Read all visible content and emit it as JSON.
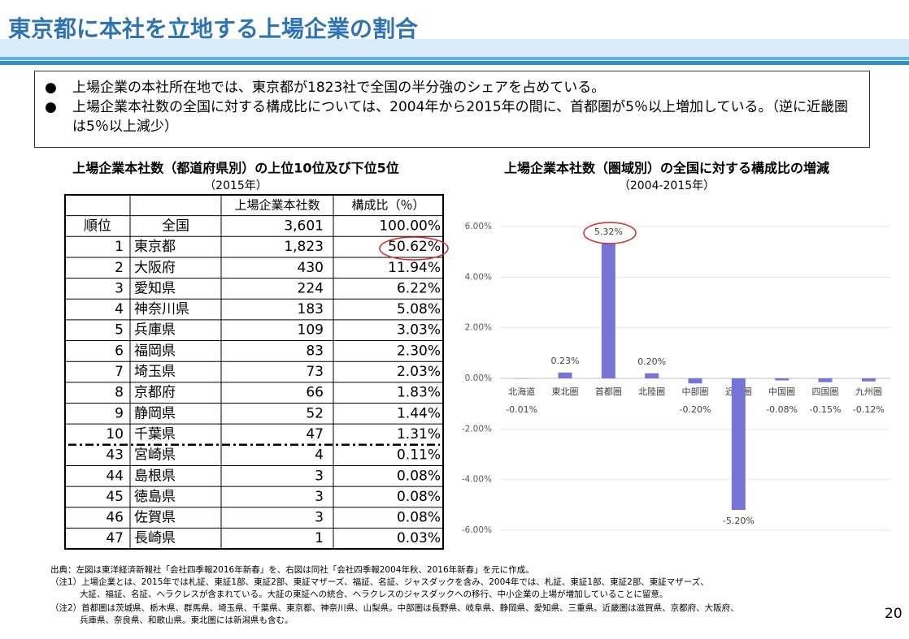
{
  "header": {
    "title": "東京都に本社を立地する上場企業の割合"
  },
  "bullets": [
    "上場企業の本社所在地では、東京都が1823社で全国の半分強のシェアを占めている。",
    "上場企業本社数の全国に対する構成比については、2004年から2015年の間に、首都圏が5％以上増加している。（逆に近畿圏は5％以上減少）"
  ],
  "table": {
    "title": "上場企業本社数（都道府県別）の上位10位及び下位5位",
    "subtitle": "（2015年）",
    "header": [
      "上場企業本社数",
      "構成比（％）"
    ],
    "total": [
      "順位",
      "全国",
      "3,601",
      "100.00%"
    ],
    "rows": [
      [
        "1",
        "東京都",
        "1,823",
        "50.62%"
      ],
      [
        "2",
        "大阪府",
        "430",
        "11.94%"
      ],
      [
        "3",
        "愛知県",
        "224",
        "6.22%"
      ],
      [
        "4",
        "神奈川県",
        "183",
        "5.08%"
      ],
      [
        "5",
        "兵庫県",
        "109",
        "3.03%"
      ],
      [
        "6",
        "福岡県",
        "83",
        "2.30%"
      ],
      [
        "7",
        "埼玉県",
        "73",
        "2.03%"
      ],
      [
        "8",
        "京都府",
        "66",
        "1.83%"
      ],
      [
        "9",
        "静岡県",
        "52",
        "1.44%"
      ],
      [
        "10",
        "千葉県",
        "47",
        "1.31%"
      ],
      [
        "43",
        "宮崎県",
        "4",
        "0.11%"
      ],
      [
        "44",
        "島根県",
        "3",
        "0.08%"
      ],
      [
        "45",
        "徳島県",
        "3",
        "0.08%"
      ],
      [
        "46",
        "佐賀県",
        "3",
        "0.08%"
      ],
      [
        "47",
        "長崎県",
        "1",
        "0.03%"
      ]
    ]
  },
  "chart_data": {
    "type": "bar",
    "title": "上場企業本社数（圏域別）の全国に対する構成比の増減",
    "subtitle": "（2004-2015年）",
    "categories": [
      "北海道",
      "東北圏",
      "首都圏",
      "北陸圏",
      "中部圏",
      "近畿圏",
      "中国圏",
      "四国圏",
      "九州圏"
    ],
    "values": [
      -0.01,
      0.23,
      5.32,
      0.2,
      -0.2,
      -5.2,
      -0.08,
      -0.15,
      -0.12
    ],
    "value_labels": [
      "-0.01%",
      "0.23%",
      "5.32%",
      "0.20%",
      "-0.20%",
      "-5.20%",
      "-0.08%",
      "-0.15%",
      "-0.12%"
    ],
    "color": "#7575d6",
    "ylim": [
      -6,
      6
    ],
    "yticks": [
      {
        "value": 6,
        "label": "6.00%"
      },
      {
        "value": 4,
        "label": "4.00%"
      },
      {
        "value": 2,
        "label": "2.00%"
      },
      {
        "value": 0,
        "label": "0.00%"
      },
      {
        "value": -2,
        "label": "-2.00%"
      },
      {
        "value": -4,
        "label": "-4.00%"
      },
      {
        "value": -6,
        "label": "-6.00%"
      }
    ],
    "grid": true
  },
  "notes": [
    "出典：左図は東洋経済新報社「会社四季報2016年新春」を、右図は同社「会社四季報2004年秋、2016年新春」を元に作成。",
    "（注1）上場企業とは、2015年では札証、東証1部、東証2部、東証マザーズ、福証、名証、ジャスダックを含み、2004年では、札証、東証1部、東証2部、東証マザーズ、",
    "大証、福証、名証、ヘラクレスが含まれている。大証の東証への統合、ヘラクレスのジャスダックへの移行、中小企業の上場が増加していることに留意。",
    "（注2）首都圏は茨城県、栃木県、群馬県、埼玉県、千葉県、東京都、神奈川県、山梨県。中部圏は長野県、岐阜県、静岡県、愛知県、三重県。近畿圏は滋賀県、京都府、大阪府、",
    "兵庫県、奈良県、和歌山県。東北圏には新潟県も含む。"
  ],
  "page_number": "20"
}
